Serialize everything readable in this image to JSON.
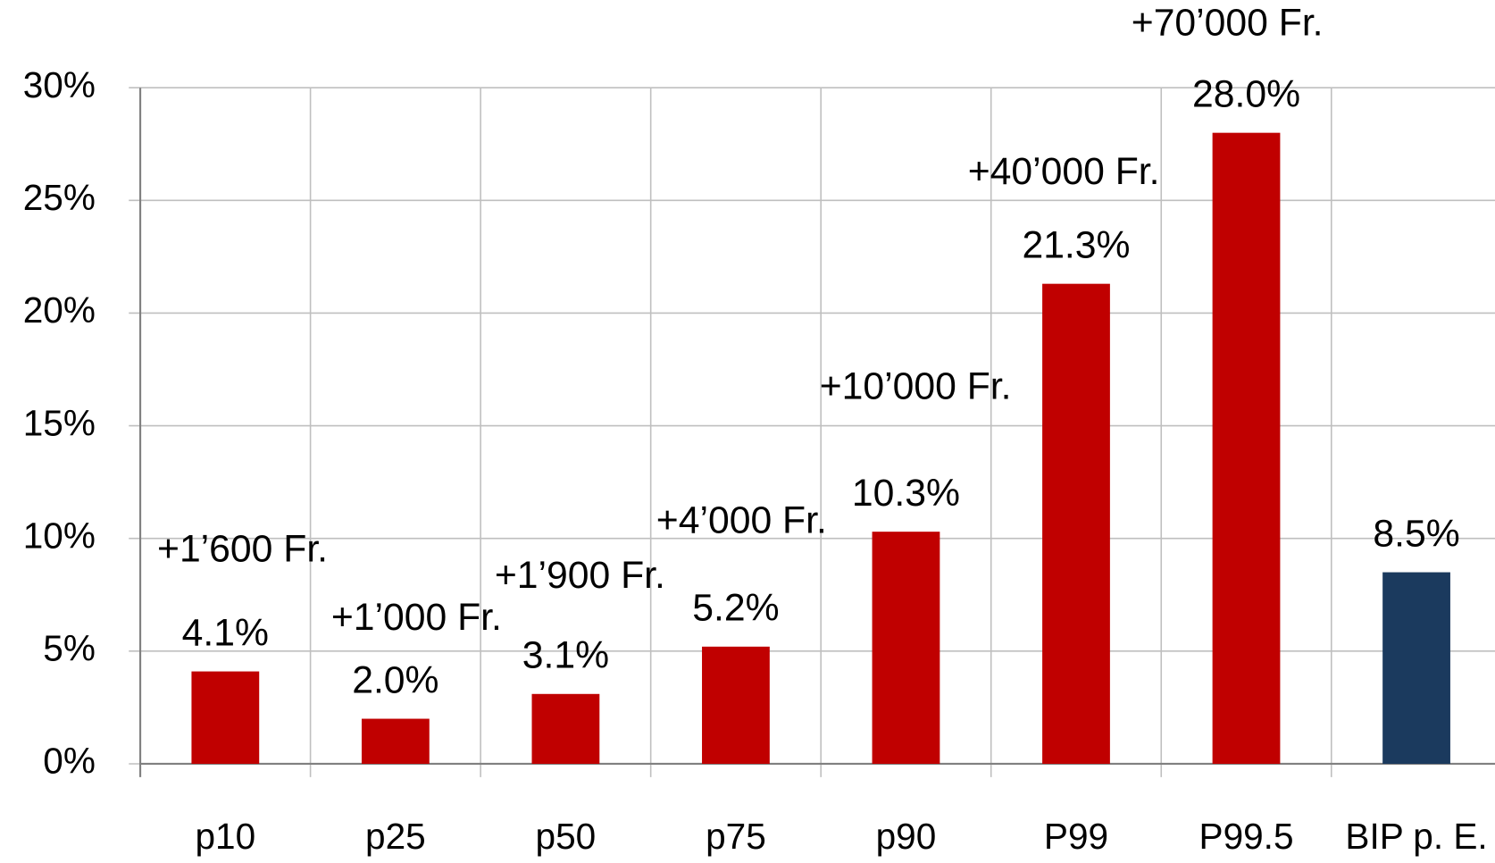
{
  "chart_data": {
    "type": "bar",
    "categories": [
      "p10",
      "p25",
      "p50",
      "p75",
      "p90",
      "P99",
      "P99.5",
      "BIP p. E."
    ],
    "values": [
      4.1,
      2.0,
      3.1,
      5.2,
      10.3,
      21.3,
      28.0,
      8.5
    ],
    "value_labels": [
      "4.1%",
      "2.0%",
      "3.1%",
      "5.2%",
      "10.3%",
      "21.3%",
      "28.0%",
      "8.5%"
    ],
    "colors": [
      "#c00000",
      "#c00000",
      "#c00000",
      "#c00000",
      "#c00000",
      "#c00000",
      "#c00000",
      "#1b3a5e"
    ],
    "annotations": [
      "+1’600 Fr.",
      "+1’000 Fr.",
      "+1’900 Fr.",
      "+4’000 Fr.",
      "+10’000 Fr.",
      "+40’000 Fr.",
      "+70’000 Fr."
    ],
    "ylim": [
      0,
      30
    ],
    "yticks": [
      {
        "value": 0,
        "label": "0%"
      },
      {
        "value": 5,
        "label": "5%"
      },
      {
        "value": 10,
        "label": "10%"
      },
      {
        "value": 15,
        "label": "15%"
      },
      {
        "value": 20,
        "label": "20%"
      },
      {
        "value": 25,
        "label": "25%"
      },
      {
        "value": 30,
        "label": "30%"
      }
    ],
    "grid": true
  }
}
